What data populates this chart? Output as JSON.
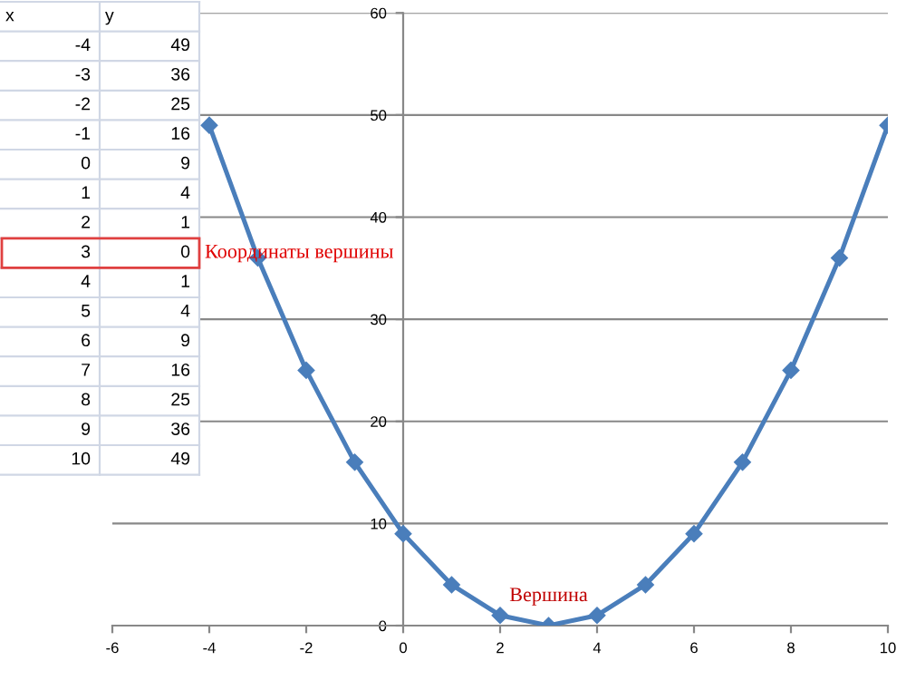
{
  "chart_data": {
    "type": "line",
    "x": [
      -4,
      -3,
      -2,
      -1,
      0,
      1,
      2,
      3,
      4,
      5,
      6,
      7,
      8,
      9,
      10
    ],
    "values": [
      49,
      36,
      25,
      16,
      9,
      4,
      1,
      0,
      1,
      4,
      9,
      16,
      25,
      36,
      49
    ],
    "color": "#4a7ebb",
    "marker": "diamond",
    "line_style": "solid",
    "xlim": [
      -6,
      10
    ],
    "xticks": [
      -6,
      -4,
      -2,
      0,
      2,
      4,
      6,
      8,
      10
    ],
    "ylim": [
      0,
      60
    ],
    "yticks": [
      0,
      10,
      20,
      30,
      40,
      50,
      60
    ],
    "grid": "y",
    "annotations": [
      "x",
      "y",
      "-4",
      "49",
      "-3",
      "36",
      "-2",
      "25",
      "-1",
      "16",
      "0",
      "9",
      "1",
      "4",
      "2",
      "1",
      "3",
      "0",
      "4",
      "1",
      "5",
      "4",
      "6",
      "9",
      "7",
      "16",
      "8",
      "25",
      "9",
      "36",
      "10",
      "49",
      "Координаты вершины",
      {
        "text": "Вершина",
        "x": 3,
        "y": 0
      }
    ]
  }
}
